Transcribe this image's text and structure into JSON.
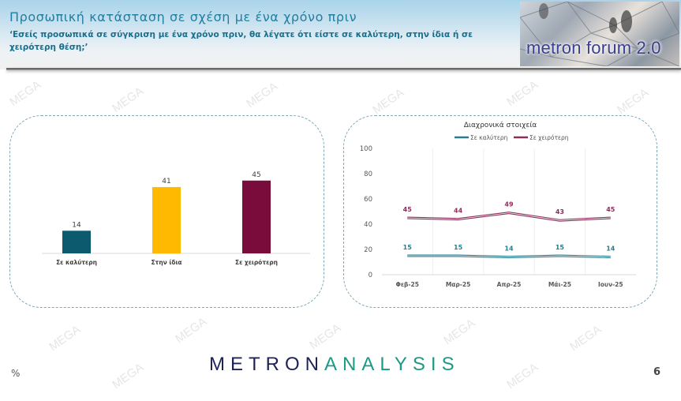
{
  "header": {
    "title": "Προσωπική κατάσταση σε σχέση με ένα χρόνο πριν",
    "subtitle": "‘Εσείς προσωπικά σε σύγκριση με ένα χρόνο πριν, θα λέγατε ότι είστε σε καλύτερη, στην ίδια ή σε χειρότερη θέση;’",
    "logo_text": "metron forum 2.0"
  },
  "footer": {
    "unit": "%",
    "brand_part1": "METRON",
    "brand_part2": "ANALYSIS",
    "page_number": "6"
  },
  "watermark": "MEGA",
  "colors": {
    "better": "#0b5a6e",
    "same": "#ffb900",
    "worse": "#7a0c3c",
    "title": "#1f7fa1"
  },
  "chart_data": [
    {
      "type": "bar",
      "title": "",
      "categories": [
        "Σε καλύτερη",
        "Στην ίδια",
        "Σε χειρότερη"
      ],
      "values": [
        14,
        41,
        45
      ],
      "colors": [
        "#0b5a6e",
        "#ffb900",
        "#7a0c3c"
      ],
      "xlabel": "",
      "ylabel": "",
      "grid": false,
      "data_labels": true
    },
    {
      "type": "line",
      "title": "Διαχρονικά στοιχεία",
      "categories": [
        "Φεβ-25",
        "Μαρ-25",
        "Απρ-25",
        "Μάι-25",
        "Ιουν-25"
      ],
      "series": [
        {
          "name": "Σε καλύτερη",
          "values": [
            15,
            15,
            14,
            15,
            14
          ],
          "color": "#2a7b8c"
        },
        {
          "name": "Σε χειρότερη",
          "values": [
            45,
            44,
            49,
            43,
            45
          ],
          "color": "#8a2f5a"
        }
      ],
      "ylim": [
        0,
        100
      ],
      "yticks": [
        0,
        20,
        40,
        60,
        80,
        100
      ],
      "legend_position": "top",
      "grid": "vertical"
    }
  ]
}
